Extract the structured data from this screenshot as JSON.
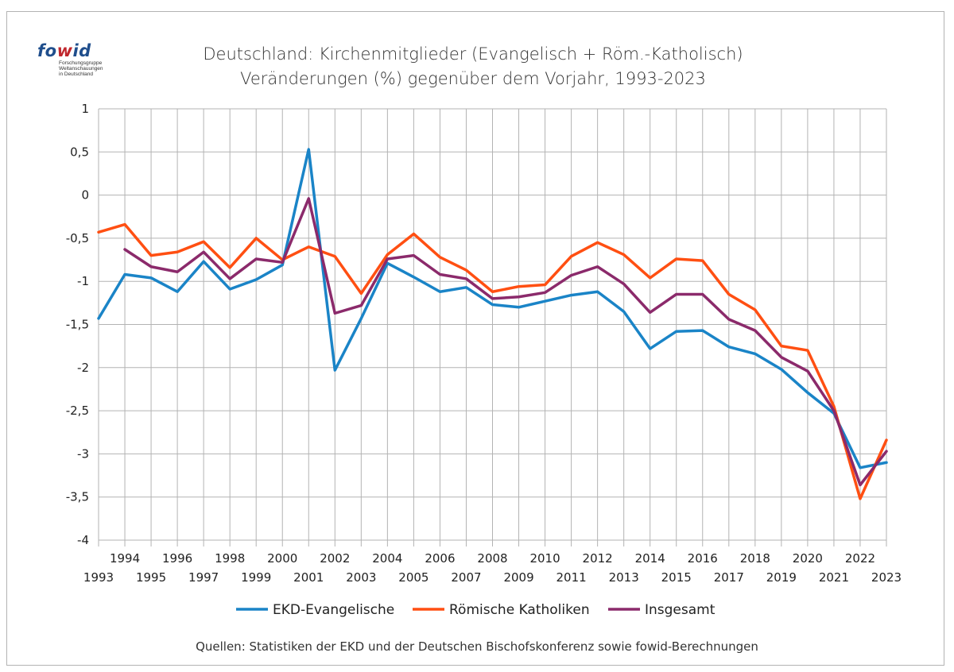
{
  "logo": {
    "part1": "fo",
    "part2": "w",
    "part3": "id",
    "line1": "Forschungsgruppe",
    "line2": "Weltanschauungen",
    "line3": "in Deutschland",
    "color_fo": "#1f4e8c",
    "color_wid": "#c0272d"
  },
  "source": "Quellen: Statistiken der EKD und der Deutschen Bischofskonferenz sowie fowid-Berechnungen",
  "chart_data": {
    "type": "line",
    "title": "Deutschland: Kirchenmitglieder (Evangelisch + Röm.-Katholisch)",
    "subtitle": "Veränderungen (%) gegenüber dem Vorjahr, 1993-2023",
    "xlabel": "",
    "ylabel": "",
    "ylim": [
      -4,
      1
    ],
    "yticks": [
      1,
      0.5,
      0,
      -0.5,
      -1,
      -1.5,
      -2,
      -2.5,
      -3,
      -3.5,
      -4
    ],
    "ytick_labels": [
      "1",
      "0,5",
      "0",
      "-0,5",
      "-1",
      "-1,5",
      "-2",
      "-2,5",
      "-3",
      "-3,5",
      "-4"
    ],
    "grid": true,
    "legend_position": "bottom",
    "categories": [
      "1993",
      "1994",
      "1995",
      "1996",
      "1997",
      "1998",
      "1999",
      "2000",
      "2001",
      "2002",
      "2003",
      "2004",
      "2005",
      "2006",
      "2007",
      "2008",
      "2009",
      "2010",
      "2011",
      "2012",
      "2013",
      "2014",
      "2015",
      "2016",
      "2017",
      "2018",
      "2019",
      "2020",
      "2021",
      "2022",
      "2023"
    ],
    "series": [
      {
        "name": "EKD-Evangelische",
        "color": "#1a84c7",
        "values": [
          -1.43,
          -0.92,
          -0.96,
          -1.12,
          -0.77,
          -1.09,
          -0.98,
          -0.81,
          0.53,
          -2.03,
          -1.43,
          -0.79,
          -0.95,
          -1.12,
          -1.07,
          -1.27,
          -1.3,
          -1.23,
          -1.16,
          -1.12,
          -1.35,
          -1.78,
          -1.58,
          -1.57,
          -1.76,
          -1.84,
          -2.02,
          -2.29,
          -2.53,
          -3.16,
          -3.1
        ]
      },
      {
        "name": "Römische Katholiken",
        "color": "#ff4f12",
        "values": [
          -0.43,
          -0.34,
          -0.7,
          -0.66,
          -0.54,
          -0.84,
          -0.5,
          -0.75,
          -0.6,
          -0.71,
          -1.14,
          -0.69,
          -0.45,
          -0.72,
          -0.87,
          -1.12,
          -1.06,
          -1.04,
          -0.71,
          -0.55,
          -0.69,
          -0.96,
          -0.74,
          -0.76,
          -1.15,
          -1.33,
          -1.75,
          -1.8,
          -2.45,
          -3.52,
          -2.84
        ]
      },
      {
        "name": "Insgesamt",
        "color": "#8b2a6b",
        "values": [
          null,
          -0.63,
          -0.83,
          -0.89,
          -0.66,
          -0.97,
          -0.74,
          -0.78,
          -0.04,
          -1.37,
          -1.28,
          -0.74,
          -0.7,
          -0.92,
          -0.97,
          -1.2,
          -1.18,
          -1.13,
          -0.93,
          -0.83,
          -1.03,
          -1.36,
          -1.15,
          -1.15,
          -1.44,
          -1.57,
          -1.88,
          -2.04,
          -2.5,
          -3.36,
          -2.97
        ]
      }
    ]
  }
}
